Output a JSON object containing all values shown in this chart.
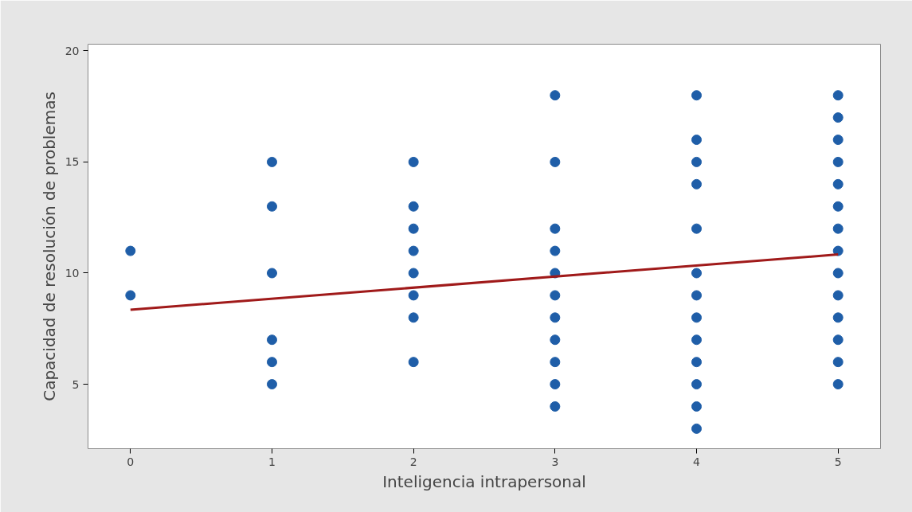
{
  "chart_data": {
    "type": "scatter",
    "xlabel": "Inteligencia intrapersonal",
    "ylabel": "Capacidad de resolución de problemas",
    "xlim": [
      -0.3,
      5.3
    ],
    "ylim": [
      2.1,
      20.3
    ],
    "xticks": [
      0,
      1,
      2,
      3,
      4,
      5
    ],
    "yticks": [
      5,
      10,
      15,
      20
    ],
    "grid": false,
    "marker": "circle",
    "series": [
      {
        "color": "#1f5ea8",
        "x": [
          0,
          0,
          1,
          1,
          1,
          1,
          1,
          1,
          2,
          2,
          2,
          2,
          2,
          2,
          2,
          2,
          3,
          3,
          3,
          3,
          3,
          3,
          3,
          3,
          3,
          3,
          3,
          4,
          4,
          4,
          4,
          4,
          4,
          4,
          4,
          4,
          4,
          4,
          4,
          4,
          5,
          5,
          5,
          5,
          5,
          5,
          5,
          5,
          5,
          5,
          5,
          5,
          5,
          5
        ],
        "values": [
          11,
          9,
          15,
          13,
          10,
          7,
          6,
          5,
          15,
          13,
          12,
          11,
          10,
          9,
          8,
          6,
          18,
          15,
          12,
          11,
          10,
          9,
          8,
          7,
          6,
          5,
          4,
          18,
          16,
          15,
          14,
          12,
          10,
          9,
          8,
          7,
          6,
          5,
          4,
          3,
          18,
          17,
          16,
          15,
          14,
          13,
          12,
          11,
          10,
          9,
          8,
          7,
          6,
          5
        ]
      },
      {
        "type": "line",
        "color": "#a01a1a",
        "x": [
          0,
          5
        ],
        "values": [
          8.35,
          10.84
        ],
        "line_style": "solid",
        "marker": "none"
      }
    ]
  }
}
